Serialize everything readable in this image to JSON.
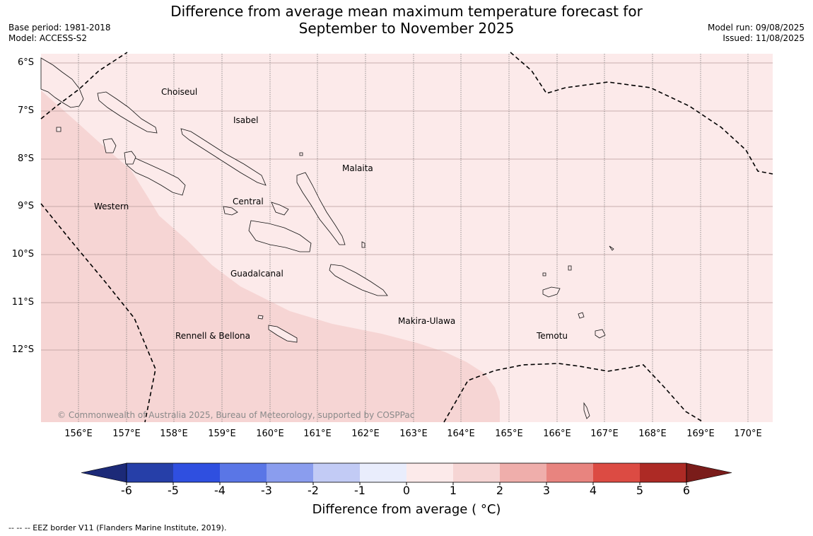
{
  "title": {
    "line1": "Difference from average mean maximum temperature forecast for",
    "line2": "September to November 2025"
  },
  "meta_left": {
    "base_period": "Base period: 1981-2018",
    "model": "Model: ACCESS-S2"
  },
  "meta_right": {
    "model_run": "Model run: 09/08/2025",
    "issued": "Issued: 11/08/2025"
  },
  "latitude_labels": [
    "6°S",
    "7°S",
    "8°S",
    "9°S",
    "10°S",
    "11°S",
    "12°S"
  ],
  "longitude_labels": [
    "156°E",
    "157°E",
    "158°E",
    "159°E",
    "160°E",
    "161°E",
    "162°E",
    "163°E",
    "164°E",
    "165°E",
    "166°E",
    "167°E",
    "168°E",
    "169°E",
    "170°E"
  ],
  "regions": {
    "choiseul": "Choiseul",
    "isabel": "Isabel",
    "malaita": "Malaita",
    "western": "Western",
    "central": "Central",
    "guadalcanal": "Guadalcanal",
    "makira_ulawa": "Makira-Ulawa",
    "temotu": "Temotu",
    "rennell_bellona": "Rennell & Bellona"
  },
  "copyright": "© Commonwealth of Australia 2025, Bureau of Meteorology, supported by COSPPac",
  "colorbar": {
    "ticks": [
      "-6",
      "-5",
      "-4",
      "-3",
      "-2",
      "-1",
      "0",
      "1",
      "2",
      "3",
      "4",
      "5",
      "6"
    ],
    "colors": [
      "#263fa8",
      "#2f4fe0",
      "#5a76e6",
      "#8a9dee",
      "#c2cbf5",
      "#e9edfc",
      "#fceaea",
      "#f6d5d4",
      "#efaeab",
      "#e8847f",
      "#dc4b43",
      "#ad2a25"
    ],
    "under_color": "#1c2a78",
    "over_color": "#7a1c1a",
    "title": "Difference from average ( °C)"
  },
  "map_colors": {
    "bin_0_1": "#fceaea",
    "bin_1_2": "#f6d5d4"
  },
  "footer": "--  --  -- EEZ border V11 (Flanders Marine Institute, 2019)."
}
